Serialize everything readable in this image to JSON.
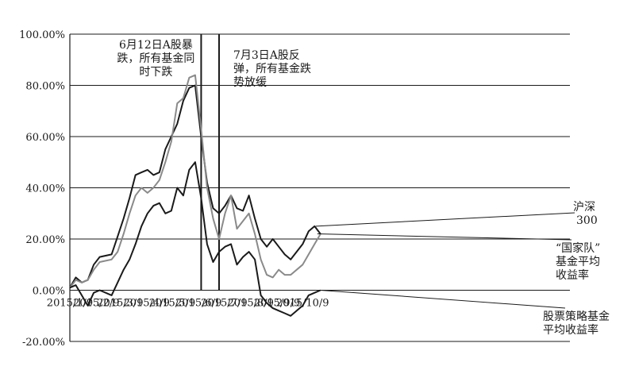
{
  "chart_data": {
    "type": "line",
    "title": "",
    "xlabel": "",
    "ylabel": "",
    "ylim": [
      -20,
      100
    ],
    "grid": "horizontal",
    "yticks": [
      100,
      80,
      60,
      40,
      20,
      0,
      -20
    ],
    "ytick_labels": [
      "100.00%",
      "80.00%",
      "60.00%",
      "40.00%",
      "20.00%",
      "0.00%",
      "-20.00%"
    ],
    "x": [
      "2015/1/9",
      "2015/1/16",
      "2015/1/23",
      "2015/1/30",
      "2015/2/6",
      "2015/2/13",
      "2015/2/27",
      "2015/3/6",
      "2015/3/13",
      "2015/3/20",
      "2015/3/27",
      "2015/4/3",
      "2015/4/10",
      "2015/4/17",
      "2015/4/24",
      "2015/5/1",
      "2015/5/8",
      "2015/5/15",
      "2015/5/22",
      "2015/5/29",
      "2015/6/5",
      "2015/6/12",
      "2015/6/19",
      "2015/6/26",
      "2015/7/3",
      "2015/7/10",
      "2015/7/17",
      "2015/7/24",
      "2015/7/31",
      "2015/8/7",
      "2015/8/14",
      "2015/8/21",
      "2015/8/28",
      "2015/9/4",
      "2015/9/11",
      "2015/9/18",
      "2015/9/25",
      "2015/10/9",
      "2015/10/16",
      "2015/10/23",
      "2015/10/30"
    ],
    "xtick_labels": [
      "2015/1/9",
      "2015/2/9",
      "2015/3/9",
      "2015/4/9",
      "2015/5/9",
      "2015/6/9",
      "2015/7/9",
      "2015/8/9",
      "2015/9/9",
      "2015/10/9"
    ],
    "series": [
      {
        "name": "沪深300",
        "color": "#1a1a1a",
        "values": [
          1,
          5,
          3,
          4,
          10,
          13,
          14,
          21,
          28,
          36,
          45,
          46,
          47,
          45,
          46,
          55,
          60,
          65,
          74,
          79,
          80,
          60,
          42,
          32,
          30,
          33,
          37,
          32,
          31,
          37,
          28,
          20,
          17,
          20,
          17,
          14,
          12,
          18,
          23,
          25,
          22
        ]
      },
      {
        "name": "“国家队”基金平均收益率",
        "color": "#8a8a8a",
        "values": [
          1,
          4,
          3,
          4,
          8,
          11,
          12,
          15,
          22,
          30,
          37,
          40,
          38,
          40,
          43,
          50,
          58,
          73,
          75,
          83,
          84,
          63,
          40,
          28,
          20,
          30,
          37,
          24,
          27,
          30,
          22,
          12,
          6,
          5,
          8,
          6,
          6,
          10,
          14,
          18,
          22
        ]
      },
      {
        "name": "股票策略基金平均收益率",
        "color": "#1a1a1a",
        "values": [
          1,
          2,
          -2,
          -6,
          -1,
          0,
          -2,
          3,
          8,
          12,
          18,
          25,
          30,
          33,
          34,
          30,
          31,
          40,
          37,
          47,
          50,
          36,
          18,
          11,
          15,
          17,
          18,
          10,
          13,
          15,
          12,
          -2,
          -5,
          -7,
          -8,
          -9,
          -10,
          -6,
          -2,
          -1,
          0
        ]
      }
    ],
    "annotations": [
      {
        "text_lines": [
          "6月12日A股暴",
          "跌，所有基金同",
          "时下跌"
        ],
        "vline_at": "2015/6/12"
      },
      {
        "text_lines": [
          "7月3日A股反",
          "弹，所有基金跌",
          "势放缓"
        ],
        "vline_at": "2015/7/3"
      }
    ],
    "series_labels": [
      {
        "series": 0,
        "lines": [
          "沪深",
          "300"
        ]
      },
      {
        "series": 1,
        "lines": [
          "“国家队”",
          "基金平均",
          "收益率"
        ]
      },
      {
        "series": 2,
        "lines": [
          "股票策略基金",
          "平均收益率"
        ]
      }
    ]
  }
}
